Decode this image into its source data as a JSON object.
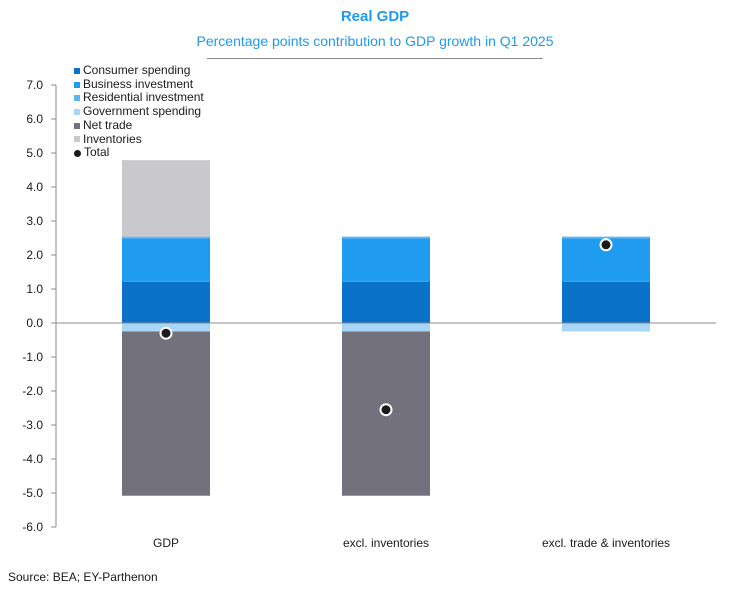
{
  "chart_data": {
    "type": "bar",
    "stacked": true,
    "title": "Real GDP",
    "subtitle": "Percentage points contribution to GDP growth in Q1 2025",
    "source": "Source: BEA; EY-Parthenon",
    "categories": [
      "GDP",
      "excl. inventories",
      "excl. trade & inventories"
    ],
    "ylim": [
      -6.0,
      7.0
    ],
    "yticks": [
      "7.0",
      "6.0",
      "5.0",
      "4.0",
      "3.0",
      "2.0",
      "1.0",
      "0.0",
      "-1.0",
      "-2.0",
      "-3.0",
      "-4.0",
      "-5.0",
      "-6.0"
    ],
    "ytick_values": [
      7,
      6,
      5,
      4,
      3,
      2,
      1,
      0,
      -1,
      -2,
      -3,
      -4,
      -5,
      -6
    ],
    "series": [
      {
        "name": "Consumer spending",
        "color": "#0a72c8",
        "values": [
          1.21,
          1.21,
          1.21
        ]
      },
      {
        "name": "Business investment",
        "color": "#1f9bf0",
        "values": [
          1.28,
          1.28,
          1.28
        ]
      },
      {
        "name": "Residential investment",
        "color": "#5cb4f0",
        "values": [
          0.05,
          0.05,
          0.05
        ]
      },
      {
        "name": "Government spending",
        "color": "#a8d6f5",
        "values": [
          -0.25,
          -0.25,
          -0.25
        ]
      },
      {
        "name": "Net trade",
        "color": "#72717c",
        "values": [
          -4.83,
          -4.83,
          0
        ]
      },
      {
        "name": "Inventories",
        "color": "#c8c8cd",
        "values": [
          2.25,
          0,
          0
        ]
      }
    ],
    "total": {
      "name": "Total",
      "color": "#1a1a1a",
      "values": [
        -0.3,
        -2.55,
        2.3
      ]
    },
    "legend_position": "top-left"
  }
}
